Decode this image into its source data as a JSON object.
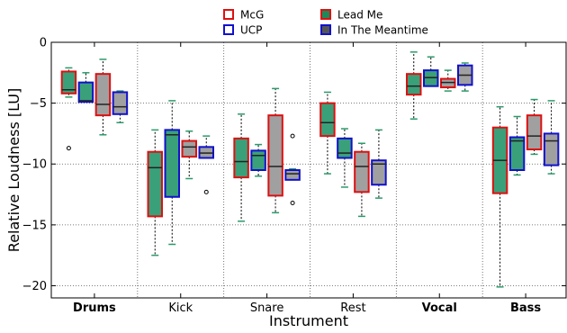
{
  "chart_data": {
    "type": "boxplot",
    "title": "",
    "xlabel": "Instrument",
    "ylabel": "Relative Loudness [LU]",
    "ylim": [
      -21,
      0
    ],
    "yticks": [
      0,
      -5,
      -10,
      -15,
      -20
    ],
    "ytick_labels": [
      "0",
      "−5",
      "−10",
      "−15",
      "−20"
    ],
    "grid": true,
    "legend_position": "top",
    "categories": [
      "Drums",
      "Kick",
      "Snare",
      "Rest",
      "Vocal",
      "Bass"
    ],
    "bold_categories": [
      "Drums",
      "Vocal",
      "Bass"
    ],
    "series": [
      {
        "name": "McG",
        "color": "#dd1111",
        "fill": "#3aa07a",
        "legend_fill": "#ffffff",
        "boxes": [
          {
            "wlo": -4.5,
            "q1": -4.2,
            "med": -3.9,
            "q3": -2.4,
            "whi": -2.1,
            "outliers": [
              -8.7
            ]
          },
          {
            "wlo": -17.5,
            "q1": -14.3,
            "med": -10.3,
            "q3": -9.0,
            "whi": -7.2,
            "outliers": []
          },
          {
            "wlo": -14.7,
            "q1": -11.1,
            "med": -9.8,
            "q3": -7.9,
            "whi": -5.9,
            "outliers": []
          },
          {
            "wlo": -10.8,
            "q1": -7.7,
            "med": -6.6,
            "q3": -5.0,
            "whi": -4.1,
            "outliers": []
          },
          {
            "wlo": -6.3,
            "q1": -4.3,
            "med": -3.6,
            "q3": -2.6,
            "whi": -0.8,
            "outliers": []
          },
          {
            "wlo": -20.1,
            "q1": -12.4,
            "med": -9.7,
            "q3": -7.0,
            "whi": -5.3,
            "outliers": []
          }
        ]
      },
      {
        "name": "UCP",
        "color": "#1111cc",
        "fill": "#3aa07a",
        "legend_fill": "#ffffff",
        "boxes": [
          {
            "wlo": -4.9,
            "q1": -4.9,
            "med": -4.8,
            "q3": -3.3,
            "whi": -2.5,
            "outliers": []
          },
          {
            "wlo": -16.6,
            "q1": -12.7,
            "med": -7.6,
            "q3": -7.2,
            "whi": -4.8,
            "outliers": []
          },
          {
            "wlo": -11.0,
            "q1": -10.5,
            "med": -9.3,
            "q3": -8.9,
            "whi": -8.4,
            "outliers": []
          },
          {
            "wlo": -11.9,
            "q1": -9.5,
            "med": -9.1,
            "q3": -7.9,
            "whi": -7.1,
            "outliers": []
          },
          {
            "wlo": -3.6,
            "q1": -3.6,
            "med": -2.9,
            "q3": -2.3,
            "whi": -1.2,
            "outliers": []
          },
          {
            "wlo": -10.9,
            "q1": -10.5,
            "med": -8.1,
            "q3": -7.8,
            "whi": -6.1,
            "outliers": []
          }
        ]
      },
      {
        "name": "Lead Me",
        "color": "#dd1111",
        "fill": "#a0a0a0",
        "legend_fill": "#1a8a5a",
        "boxes": [
          {
            "wlo": -7.6,
            "q1": -6.0,
            "med": -5.1,
            "q3": -2.6,
            "whi": -1.4,
            "outliers": []
          },
          {
            "wlo": -11.2,
            "q1": -9.4,
            "med": -8.6,
            "q3": -8.1,
            "whi": -7.3,
            "outliers": []
          },
          {
            "wlo": -14.0,
            "q1": -12.6,
            "med": -10.2,
            "q3": -6.0,
            "whi": -3.8,
            "outliers": []
          },
          {
            "wlo": -14.3,
            "q1": -12.3,
            "med": -10.2,
            "q3": -9.0,
            "whi": -8.3,
            "outliers": []
          },
          {
            "wlo": -4.0,
            "q1": -3.7,
            "med": -3.3,
            "q3": -3.0,
            "whi": -2.3,
            "outliers": []
          },
          {
            "wlo": -9.2,
            "q1": -8.8,
            "med": -7.7,
            "q3": -6.0,
            "whi": -4.7,
            "outliers": []
          }
        ]
      },
      {
        "name": "In The Meantime",
        "color": "#1111cc",
        "fill": "#a0a0a0",
        "legend_fill": "#555555",
        "boxes": [
          {
            "wlo": -6.6,
            "q1": -5.9,
            "med": -5.3,
            "q3": -4.1,
            "whi": -4.0,
            "outliers": []
          },
          {
            "wlo": -9.5,
            "q1": -9.5,
            "med": -9.1,
            "q3": -8.6,
            "whi": -7.7,
            "outliers": [
              -12.3
            ]
          },
          {
            "wlo": -11.3,
            "q1": -11.3,
            "med": -10.8,
            "q3": -10.5,
            "whi": -10.4,
            "outliers": [
              -7.7,
              -13.2
            ]
          },
          {
            "wlo": -12.8,
            "q1": -11.7,
            "med": -10.0,
            "q3": -9.7,
            "whi": -7.2,
            "outliers": []
          },
          {
            "wlo": -4.0,
            "q1": -3.5,
            "med": -2.7,
            "q3": -1.9,
            "whi": -1.7,
            "outliers": []
          },
          {
            "wlo": -10.8,
            "q1": -10.1,
            "med": -8.1,
            "q3": -7.5,
            "whi": -4.8,
            "outliers": []
          }
        ]
      }
    ]
  }
}
